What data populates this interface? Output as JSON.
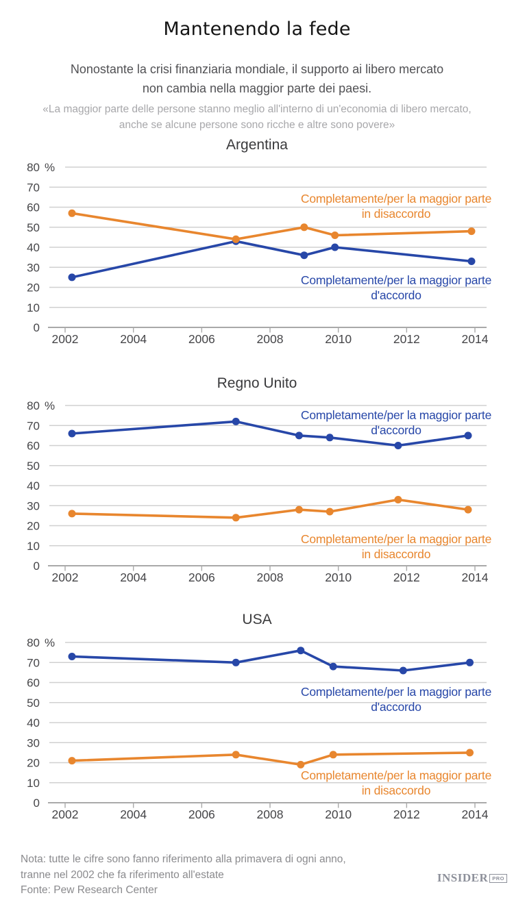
{
  "header": {
    "title": "Mantenendo la fede",
    "subtitle_lines": [
      "Nonostante la crisi finanziaria mondiale, il supporto ai libero mercato",
      "non cambia nella maggior parte dei paesi."
    ],
    "quote_lines": [
      "«La maggior parte delle persone stanno meglio all'interno di un'economia di libero mercato,",
      "anche se alcune persone sono ricche e altre sono povere»"
    ]
  },
  "colors": {
    "agree": "#2747a8",
    "disagree": "#e8862e",
    "gridline": "#d0d0d0",
    "axis": "#a9a9a9",
    "tick_text": "#454548"
  },
  "chart_data": [
    {
      "type": "line",
      "title": "Argentina",
      "ylim": [
        0,
        80
      ],
      "y_ticks": [
        80,
        70,
        60,
        50,
        40,
        30,
        20,
        10,
        0
      ],
      "y_unit_suffix": "%",
      "x_ticks": [
        2002,
        2004,
        2006,
        2008,
        2010,
        2012,
        2014
      ],
      "xlim": [
        2001.5,
        2014.35
      ],
      "grid": true,
      "legend_position": "inline-annotations",
      "series": [
        {
          "name": "accordo",
          "color_key": "agree",
          "label_lines": [
            "Completamente/per la maggior parte",
            "d'accordo"
          ],
          "label_cx": 578,
          "label_y1": 183,
          "label_y2": 205,
          "points": [
            {
              "x": 2002.2,
              "y": 25
            },
            {
              "x": 2007.0,
              "y": 43
            },
            {
              "x": 2009.0,
              "y": 36
            },
            {
              "x": 2009.9,
              "y": 40
            },
            {
              "x": 2013.9,
              "y": 33
            }
          ]
        },
        {
          "name": "disaccordo",
          "color_key": "disagree",
          "label_lines": [
            "Completamente/per la maggior parte",
            "in disaccordo"
          ],
          "label_cx": 578,
          "label_y1": 64,
          "label_y2": 86,
          "points": [
            {
              "x": 2002.2,
              "y": 57
            },
            {
              "x": 2007.0,
              "y": 44
            },
            {
              "x": 2009.0,
              "y": 50
            },
            {
              "x": 2009.9,
              "y": 46
            },
            {
              "x": 2013.9,
              "y": 48
            }
          ]
        }
      ]
    },
    {
      "type": "line",
      "title": "Regno Unito",
      "ylim": [
        0,
        80
      ],
      "y_ticks": [
        80,
        70,
        60,
        50,
        40,
        30,
        20,
        10,
        0
      ],
      "y_unit_suffix": "%",
      "x_ticks": [
        2002,
        2004,
        2006,
        2008,
        2010,
        2012,
        2014
      ],
      "xlim": [
        2001.5,
        2014.35
      ],
      "grid": true,
      "legend_position": "inline-annotations",
      "series": [
        {
          "name": "accordo",
          "color_key": "agree",
          "label_lines": [
            "Completamente/per la maggior parte",
            "d'accordo"
          ],
          "label_cx": 578,
          "label_y1": 32,
          "label_y2": 54,
          "points": [
            {
              "x": 2002.2,
              "y": 66
            },
            {
              "x": 2007.0,
              "y": 72
            },
            {
              "x": 2008.85,
              "y": 65
            },
            {
              "x": 2009.75,
              "y": 64
            },
            {
              "x": 2011.75,
              "y": 60
            },
            {
              "x": 2013.8,
              "y": 65
            }
          ]
        },
        {
          "name": "disaccordo",
          "color_key": "disagree",
          "label_lines": [
            "Completamente/per la maggior parte",
            "in disaccordo"
          ],
          "label_cx": 578,
          "label_y1": 213,
          "label_y2": 235,
          "points": [
            {
              "x": 2002.2,
              "y": 26
            },
            {
              "x": 2007.0,
              "y": 24
            },
            {
              "x": 2008.85,
              "y": 28
            },
            {
              "x": 2009.75,
              "y": 27
            },
            {
              "x": 2011.75,
              "y": 33
            },
            {
              "x": 2013.8,
              "y": 28
            }
          ]
        }
      ]
    },
    {
      "type": "line",
      "title": "USA",
      "ylim": [
        0,
        80
      ],
      "y_ticks": [
        80,
        70,
        60,
        50,
        40,
        30,
        20,
        10,
        0
      ],
      "y_unit_suffix": "%",
      "x_ticks": [
        2002,
        2004,
        2006,
        2008,
        2010,
        2012,
        2014
      ],
      "xlim": [
        2001.5,
        2014.35
      ],
      "grid": true,
      "legend_position": "inline-annotations",
      "series": [
        {
          "name": "accordo",
          "color_key": "agree",
          "label_lines": [
            "Completamente/per la maggior parte",
            "d'accordo"
          ],
          "label_cx": 578,
          "label_y1": 90,
          "label_y2": 112,
          "points": [
            {
              "x": 2002.2,
              "y": 73
            },
            {
              "x": 2007.0,
              "y": 70
            },
            {
              "x": 2008.9,
              "y": 76
            },
            {
              "x": 2009.85,
              "y": 68
            },
            {
              "x": 2011.9,
              "y": 66
            },
            {
              "x": 2013.85,
              "y": 70
            }
          ]
        },
        {
          "name": "disaccordo",
          "color_key": "disagree",
          "label_lines": [
            "Completamente/per la maggior parte",
            "in disaccordo"
          ],
          "label_cx": 578,
          "label_y1": 212,
          "label_y2": 234,
          "points": [
            {
              "x": 2002.2,
              "y": 21
            },
            {
              "x": 2007.0,
              "y": 24
            },
            {
              "x": 2008.9,
              "y": 19
            },
            {
              "x": 2009.85,
              "y": 24
            },
            {
              "x": 2013.85,
              "y": 25
            }
          ]
        }
      ]
    }
  ],
  "footer": {
    "note_lines": [
      "Nota: tutte le cifre sono fanno riferimento alla primavera di ogni anno,",
      "tranne nel 2002 che fa riferimento all'estate"
    ],
    "source": "Fonte: Pew Research Center",
    "logo_main": "INSIDER",
    "logo_suffix": "PRO"
  }
}
